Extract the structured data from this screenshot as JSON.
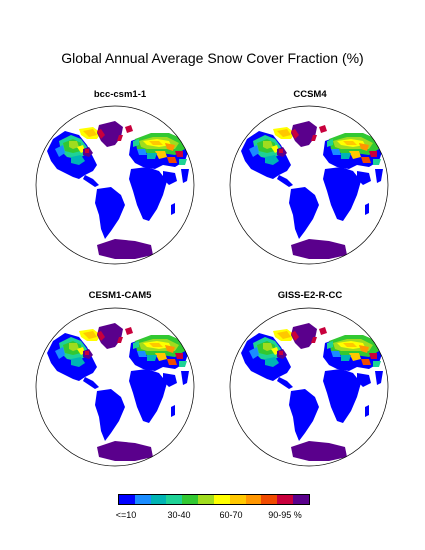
{
  "figure": {
    "title": "Global Annual Average Snow Cover Fraction (%)"
  },
  "panels": [
    {
      "name": "bcc-csm1-1"
    },
    {
      "name": "CCSM4"
    },
    {
      "name": "CESM1-CAM5"
    },
    {
      "name": "GISS-E2-R-CC"
    }
  ],
  "colorbar": {
    "colors": [
      "#0000ff",
      "#1a8cff",
      "#00b4b4",
      "#1ed296",
      "#32c832",
      "#a0dc1e",
      "#ffff00",
      "#ffc800",
      "#ff9600",
      "#f04b00",
      "#c8003c",
      "#5a008c"
    ],
    "labels": [
      "<=10",
      "30-40",
      "60-70",
      "90-95 %"
    ]
  },
  "map_colors": {
    "land_snow_free": "#0000ff",
    "antarctica": "#5a008c",
    "greenland": "#5a008c",
    "ocean": "#ffffff"
  }
}
